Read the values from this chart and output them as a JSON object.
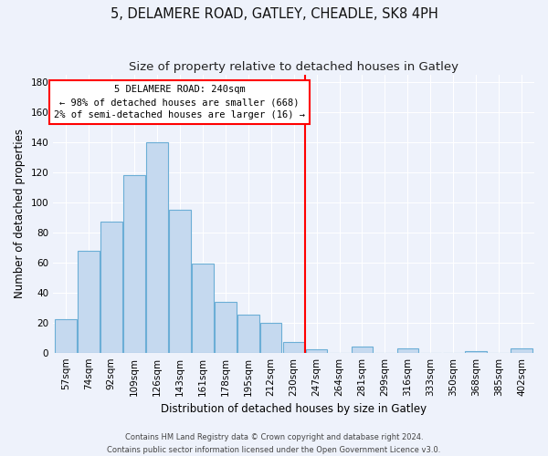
{
  "title": "5, DELAMERE ROAD, GATLEY, CHEADLE, SK8 4PH",
  "subtitle": "Size of property relative to detached houses in Gatley",
  "xlabel": "Distribution of detached houses by size in Gatley",
  "ylabel": "Number of detached properties",
  "bar_labels": [
    "57sqm",
    "74sqm",
    "92sqm",
    "109sqm",
    "126sqm",
    "143sqm",
    "161sqm",
    "178sqm",
    "195sqm",
    "212sqm",
    "230sqm",
    "247sqm",
    "264sqm",
    "281sqm",
    "299sqm",
    "316sqm",
    "333sqm",
    "350sqm",
    "368sqm",
    "385sqm",
    "402sqm"
  ],
  "bar_values": [
    22,
    68,
    87,
    118,
    140,
    95,
    59,
    34,
    25,
    20,
    7,
    2,
    0,
    4,
    0,
    3,
    0,
    0,
    1,
    0,
    3
  ],
  "bar_color": "#c5d9ef",
  "bar_edge_color": "#6baed6",
  "vline_color": "red",
  "annotation_title": "5 DELAMERE ROAD: 240sqm",
  "annotation_line1": "← 98% of detached houses are smaller (668)",
  "annotation_line2": "2% of semi-detached houses are larger (16) →",
  "ylim": [
    0,
    185
  ],
  "yticks": [
    0,
    20,
    40,
    60,
    80,
    100,
    120,
    140,
    160,
    180
  ],
  "footnote1": "Contains HM Land Registry data © Crown copyright and database right 2024.",
  "footnote2": "Contains public sector information licensed under the Open Government Licence v3.0.",
  "background_color": "#eef2fb",
  "title_fontsize": 10.5,
  "subtitle_fontsize": 9.5,
  "axis_label_fontsize": 8.5,
  "tick_fontsize": 7.5,
  "annotation_fontsize": 7.5,
  "footnote_fontsize": 6.0
}
